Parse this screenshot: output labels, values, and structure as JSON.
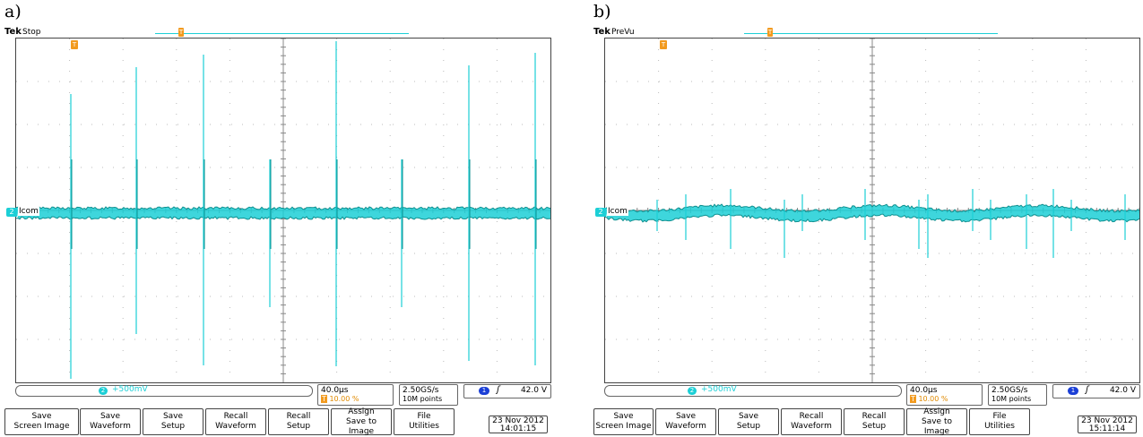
{
  "colors": {
    "trace": "#1ccfd6",
    "trace_dark": "#0e8f8f",
    "trigger": "#f29a1e",
    "ch1": "#1b3fd6"
  },
  "panels": [
    {
      "letter": "a)",
      "brand": "Tek",
      "status": "Stop",
      "channel_label": "Icom",
      "channel_badge": "2",
      "trigger_badge": "T",
      "ch_scale_badge": "2",
      "ch_scale": "+500mV",
      "timebase": "40.0µs",
      "trig_pos_badge": "T",
      "trig_pos": "10.00 %",
      "sample_rate": "2.50GS/s",
      "record_length": "10M points",
      "trig_channel": "1",
      "trig_slope": "ʃ",
      "trig_level": "42.0 V",
      "buttons": [
        {
          "line1": "Save",
          "line2": "Screen Image"
        },
        {
          "line1": "Save",
          "line2": "Waveform"
        },
        {
          "line1": "Save",
          "line2": "Setup"
        },
        {
          "line1": "Recall",
          "line2": "Waveform"
        },
        {
          "line1": "Recall",
          "line2": "Setup"
        },
        {
          "line1": "Assign",
          "line2": "Save to",
          "line3": "Image"
        },
        {
          "line1": "File",
          "line2": "Utilities"
        }
      ],
      "date": "23 Nov 2012",
      "time": "14:01:15"
    },
    {
      "letter": "b)",
      "brand": "Tek",
      "status": "PreVu",
      "channel_label": "Icom",
      "channel_badge": "2",
      "trigger_badge": "T",
      "ch_scale_badge": "2",
      "ch_scale": "+500mV",
      "timebase": "40.0µs",
      "trig_pos_badge": "T",
      "trig_pos": "10.00 %",
      "sample_rate": "2.50GS/s",
      "record_length": "10M points",
      "trig_channel": "1",
      "trig_slope": "ʃ",
      "trig_level": "42.0 V",
      "buttons": [
        {
          "line1": "Save",
          "line2": "Screen Image"
        },
        {
          "line1": "Save",
          "line2": "Waveform"
        },
        {
          "line1": "Save",
          "line2": "Setup"
        },
        {
          "line1": "Recall",
          "line2": "Waveform"
        },
        {
          "line1": "Recall",
          "line2": "Setup"
        },
        {
          "line1": "Assign",
          "line2": "Save to",
          "line3": "Image"
        },
        {
          "line1": "File",
          "line2": "Utilities"
        }
      ],
      "date": "23 Nov 2012",
      "time": "15:11:14"
    }
  ]
}
